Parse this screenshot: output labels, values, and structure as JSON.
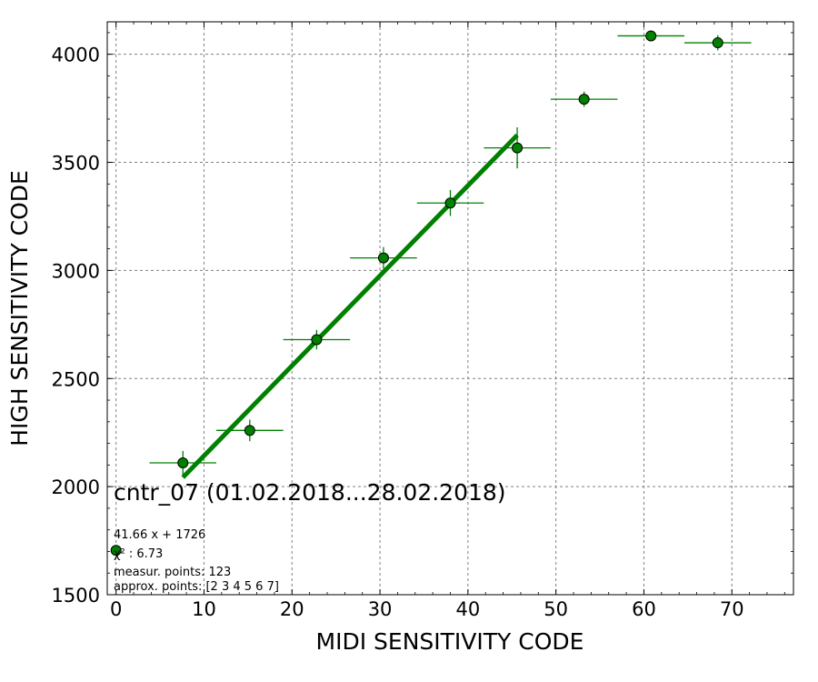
{
  "chart_data": {
    "type": "scatter",
    "title": "",
    "xlabel": "MIDI SENSITIVITY CODE",
    "ylabel": "HIGH SENSITIVITY CODE",
    "xlim": [
      -1,
      77
    ],
    "ylim": [
      1500,
      4150
    ],
    "x_ticks": [
      0,
      10,
      20,
      30,
      40,
      50,
      60,
      70
    ],
    "y_ticks": [
      1500,
      2000,
      2500,
      3000,
      3500,
      4000
    ],
    "grid": true,
    "marker_color": "#008000",
    "line_color": "#008000",
    "points": [
      {
        "x": 0.0,
        "y": 1705,
        "xerr": 0,
        "yerr": 0
      },
      {
        "x": 7.6,
        "y": 2110,
        "xerr": 3.8,
        "yerr": 55
      },
      {
        "x": 15.2,
        "y": 2260,
        "xerr": 3.8,
        "yerr": 50
      },
      {
        "x": 22.8,
        "y": 2680,
        "xerr": 3.8,
        "yerr": 45
      },
      {
        "x": 30.4,
        "y": 3058,
        "xerr": 3.8,
        "yerr": 50
      },
      {
        "x": 38.0,
        "y": 3312,
        "xerr": 3.8,
        "yerr": 60
      },
      {
        "x": 45.6,
        "y": 3567,
        "xerr": 3.8,
        "yerr": 95
      },
      {
        "x": 53.2,
        "y": 3792,
        "xerr": 3.8,
        "yerr": 35
      },
      {
        "x": 60.8,
        "y": 4085,
        "xerr": 3.8,
        "yerr": 20
      },
      {
        "x": 68.4,
        "y": 4053,
        "xerr": 3.8,
        "yerr": 35
      }
    ],
    "fit": {
      "slope": 41.66,
      "intercept": 1726,
      "x_start": 7.6,
      "x_end": 45.6
    },
    "annotations": {
      "main": "cntr_07 (01.02.2018...28.02.2018)",
      "equation": "41.66 x + 1726",
      "chi2": "χ² : 6.73",
      "measur_points": "measur. points: 123",
      "approx_points": "approx. points: [2 3 4 5 6 7]"
    }
  }
}
